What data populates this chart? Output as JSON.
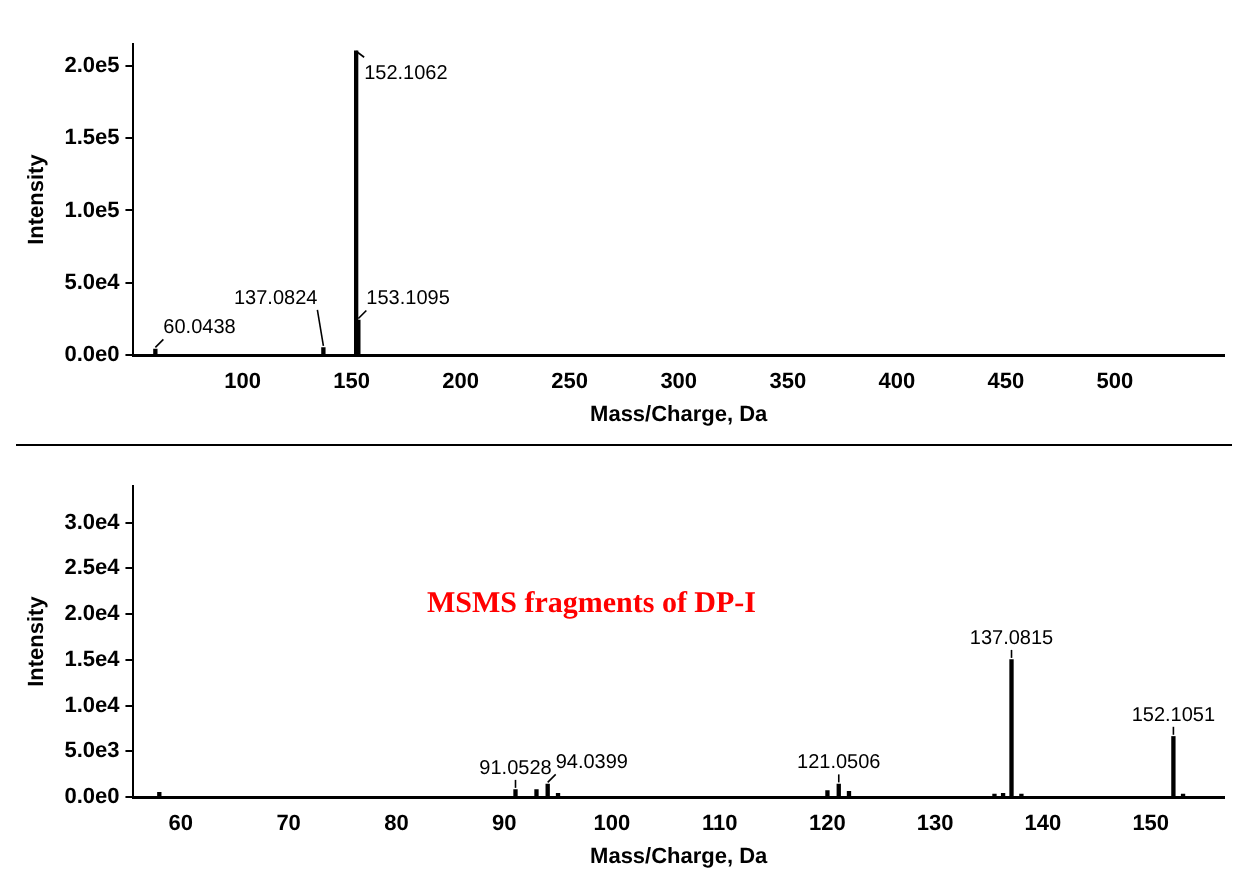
{
  "chart_data": [
    {
      "type": "bar",
      "xlabel": "Mass/Charge, Da",
      "ylabel": "Intensity",
      "x": [
        60.0438,
        137.0824,
        152.1062,
        153.1095
      ],
      "values": [
        4000,
        5000,
        210000,
        24000
      ],
      "color": "#000000",
      "xlim": [
        50,
        550
      ],
      "xticks": [
        100,
        150,
        200,
        250,
        300,
        350,
        400,
        450,
        500
      ],
      "ylim": [
        0,
        215000
      ],
      "yticks": [
        {
          "value": 0,
          "label": "0.0e0"
        },
        {
          "value": 50000,
          "label": "5.0e4"
        },
        {
          "value": 100000,
          "label": "1.0e5"
        },
        {
          "value": 150000,
          "label": "1.5e5"
        },
        {
          "value": 200000,
          "label": "2.0e5"
        }
      ],
      "annotations": [
        {
          "text": "60.0438",
          "x": 60.0438,
          "y": 4000
        },
        {
          "text": "137.0824",
          "x": 137.0824,
          "y": 5000
        },
        {
          "text": "152.1062",
          "x": 152.1062,
          "y": 210000
        },
        {
          "text": "153.1095",
          "x": 153.1095,
          "y": 24000
        }
      ]
    },
    {
      "type": "bar",
      "xlabel": "Mass/Charge, Da",
      "ylabel": "Intensity",
      "x": [
        58,
        91.0528,
        93,
        94.0399,
        95,
        120,
        121.0506,
        122,
        135.5,
        136.3,
        137.0815,
        138,
        152.1051,
        153
      ],
      "values": [
        500,
        800,
        800,
        1400,
        400,
        700,
        1400,
        600,
        300,
        400,
        15000,
        300,
        6600,
        300
      ],
      "color": "#000000",
      "xlim": [
        55.6,
        156.8
      ],
      "xticks": [
        60,
        70,
        80,
        90,
        100,
        110,
        120,
        130,
        140,
        150
      ],
      "ylim": [
        0,
        34000
      ],
      "yticks": [
        {
          "value": 0,
          "label": "0.0e0"
        },
        {
          "value": 5000,
          "label": "5.0e3"
        },
        {
          "value": 10000,
          "label": "1.0e4"
        },
        {
          "value": 15000,
          "label": "1.5e4"
        },
        {
          "value": 20000,
          "label": "2.0e4"
        },
        {
          "value": 25000,
          "label": "2.5e4"
        },
        {
          "value": 30000,
          "label": "3.0e4"
        }
      ],
      "annotations": [
        "MSMS fragments of DP-I",
        {
          "text": "91.0528",
          "x": 91.0528,
          "y": 800
        },
        {
          "text": "94.0399",
          "x": 94.0399,
          "y": 1400
        },
        {
          "text": "121.0506",
          "x": 121.0506,
          "y": 1400
        },
        {
          "text": "137.0815",
          "x": 137.0815,
          "y": 15000
        },
        {
          "text": "152.1051",
          "x": 152.1051,
          "y": 6600
        }
      ]
    }
  ]
}
